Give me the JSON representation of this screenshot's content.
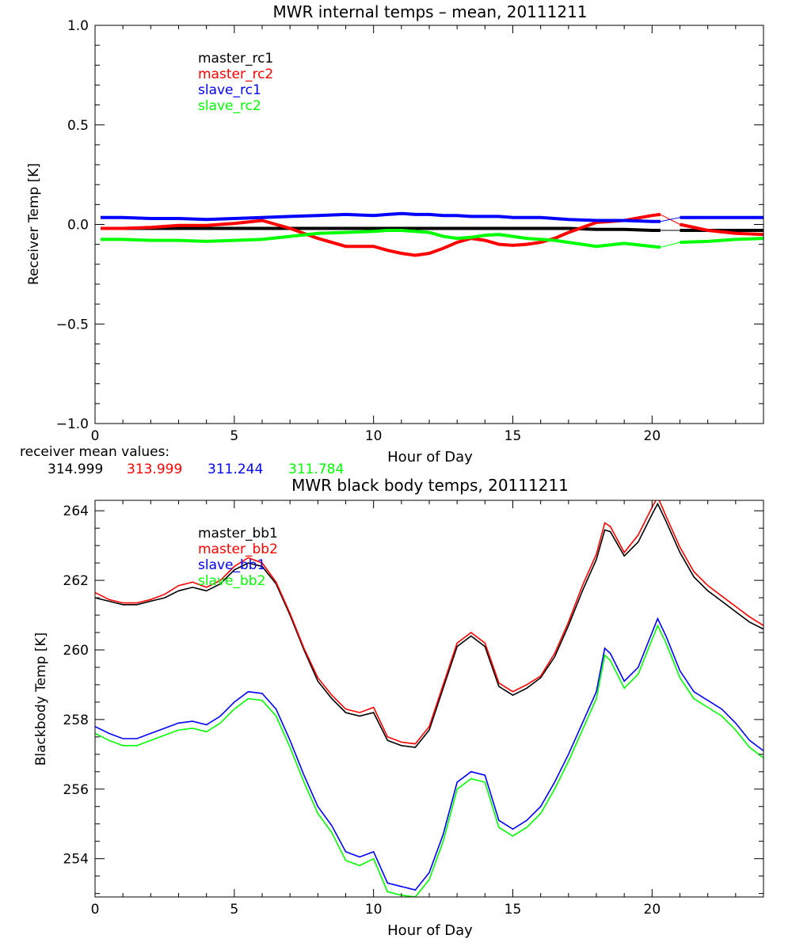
{
  "chart_data": [
    {
      "type": "line",
      "title": "MWR internal temps – mean, 20111211",
      "xlabel": "Hour of Day",
      "ylabel": "Receiver Temp [K]",
      "xlim": [
        0,
        24
      ],
      "ylim": [
        -1.0,
        1.0
      ],
      "x_ticks": [
        0,
        5,
        10,
        15,
        20
      ],
      "x_tick_labels": [
        "0",
        "5",
        "10",
        "15",
        "20"
      ],
      "y_ticks": [
        -1.0,
        -0.5,
        0.0,
        0.5,
        1.0
      ],
      "y_tick_labels": [
        "−1.0",
        "−0.5",
        "0.0",
        "0.5",
        "1.0"
      ],
      "grid": false,
      "legend_position": "top-left",
      "x": [
        0.2,
        1,
        2,
        3,
        4,
        5,
        6,
        7,
        8,
        9,
        10,
        10.5,
        11,
        11.5,
        12,
        12.5,
        13,
        13.5,
        14,
        14.5,
        15,
        15.5,
        16,
        16.5,
        17,
        18,
        19,
        20,
        20.3
      ],
      "x_after_gap": [
        21.0,
        22,
        23,
        24
      ],
      "series": [
        {
          "name": "master_rc1",
          "color": "#000000",
          "values": [
            -0.02,
            -0.02,
            -0.02,
            -0.02,
            -0.02,
            -0.02,
            -0.02,
            -0.02,
            -0.02,
            -0.02,
            -0.02,
            -0.02,
            -0.02,
            -0.02,
            -0.02,
            -0.02,
            -0.02,
            -0.02,
            -0.02,
            -0.02,
            -0.02,
            -0.02,
            -0.02,
            -0.02,
            -0.02,
            -0.025,
            -0.025,
            -0.03,
            -0.03
          ],
          "values_after_gap": [
            -0.03,
            -0.03,
            -0.03,
            -0.03
          ]
        },
        {
          "name": "master_rc2",
          "color": "#ff0000",
          "values": [
            -0.02,
            -0.02,
            -0.015,
            -0.005,
            -0.005,
            0.005,
            0.02,
            -0.02,
            -0.07,
            -0.11,
            -0.11,
            -0.13,
            -0.145,
            -0.155,
            -0.145,
            -0.12,
            -0.09,
            -0.07,
            -0.08,
            -0.1,
            -0.105,
            -0.1,
            -0.09,
            -0.07,
            -0.04,
            0.01,
            0.02,
            0.045,
            0.05
          ],
          "values_after_gap": [
            0.0,
            -0.03,
            -0.045,
            -0.05
          ]
        },
        {
          "name": "slave_rc1",
          "color": "#0000ff",
          "values": [
            0.035,
            0.035,
            0.03,
            0.03,
            0.025,
            0.03,
            0.035,
            0.04,
            0.045,
            0.05,
            0.045,
            0.05,
            0.055,
            0.05,
            0.05,
            0.045,
            0.045,
            0.04,
            0.04,
            0.04,
            0.035,
            0.035,
            0.035,
            0.03,
            0.025,
            0.02,
            0.02,
            0.015,
            0.015
          ],
          "values_after_gap": [
            0.035,
            0.035,
            0.035,
            0.035
          ]
        },
        {
          "name": "slave_rc2",
          "color": "#00ff00",
          "values": [
            -0.075,
            -0.075,
            -0.08,
            -0.08,
            -0.085,
            -0.08,
            -0.075,
            -0.06,
            -0.045,
            -0.04,
            -0.035,
            -0.03,
            -0.03,
            -0.035,
            -0.04,
            -0.06,
            -0.07,
            -0.065,
            -0.055,
            -0.05,
            -0.06,
            -0.07,
            -0.075,
            -0.08,
            -0.09,
            -0.11,
            -0.095,
            -0.11,
            -0.115
          ],
          "values_after_gap": [
            -0.09,
            -0.085,
            -0.075,
            -0.07
          ]
        }
      ]
    },
    {
      "type": "line",
      "title": "MWR black body temps, 20111211",
      "xlabel": "Hour of Day",
      "ylabel": "Blackbody Temp [K]",
      "xlim": [
        0,
        24
      ],
      "ylim": [
        252.9,
        264.3
      ],
      "x_ticks": [
        0,
        5,
        10,
        15,
        20
      ],
      "x_tick_labels": [
        "0",
        "5",
        "10",
        "15",
        "20"
      ],
      "y_ticks": [
        254,
        256,
        258,
        260,
        262,
        264
      ],
      "y_tick_labels": [
        "254",
        "256",
        "258",
        "260",
        "262",
        "264"
      ],
      "grid": false,
      "legend_position": "top-left",
      "x": [
        0,
        0.5,
        1,
        1.5,
        2,
        2.5,
        3,
        3.5,
        4,
        4.5,
        5,
        5.5,
        6,
        6.5,
        7,
        7.5,
        8,
        8.5,
        9,
        9.5,
        10,
        10.5,
        11,
        11.5,
        12,
        12.5,
        13,
        13.5,
        14,
        14.5,
        15,
        15.5,
        16,
        16.5,
        17,
        17.5,
        18,
        18.3,
        18.5,
        19,
        19.5,
        20,
        20.2,
        20.5,
        21,
        21.5,
        22,
        22.5,
        23,
        23.5,
        24
      ],
      "series": [
        {
          "name": "master_bb1",
          "color": "#000000",
          "values": [
            261.5,
            261.4,
            261.3,
            261.3,
            261.4,
            261.5,
            261.7,
            261.8,
            261.7,
            261.9,
            262.3,
            262.5,
            262.4,
            261.9,
            261.0,
            260.0,
            259.1,
            258.6,
            258.2,
            258.1,
            258.2,
            257.4,
            257.25,
            257.2,
            257.7,
            258.9,
            260.1,
            260.4,
            260.1,
            258.95,
            258.7,
            258.9,
            259.2,
            259.8,
            260.7,
            261.7,
            262.6,
            263.45,
            263.4,
            262.7,
            263.1,
            263.9,
            264.2,
            263.7,
            262.8,
            262.1,
            261.7,
            261.4,
            261.1,
            260.8,
            260.6
          ]
        },
        {
          "name": "master_bb2",
          "color": "#ff0000",
          "values": [
            261.65,
            261.45,
            261.35,
            261.35,
            261.45,
            261.6,
            261.85,
            261.95,
            261.8,
            262.0,
            262.4,
            262.65,
            262.5,
            261.95,
            261.05,
            260.05,
            259.2,
            258.7,
            258.3,
            258.2,
            258.35,
            257.5,
            257.35,
            257.3,
            257.8,
            259.0,
            260.2,
            260.5,
            260.2,
            259.05,
            258.8,
            259.0,
            259.25,
            259.9,
            260.8,
            261.85,
            262.75,
            263.65,
            263.55,
            262.8,
            263.3,
            264.1,
            264.4,
            263.85,
            262.95,
            262.25,
            261.85,
            261.55,
            261.25,
            260.95,
            260.7
          ]
        },
        {
          "name": "slave_bb1",
          "color": "#0000ff",
          "values": [
            257.8,
            257.6,
            257.45,
            257.45,
            257.6,
            257.75,
            257.9,
            257.95,
            257.85,
            258.1,
            258.5,
            258.8,
            258.75,
            258.3,
            257.4,
            256.4,
            255.5,
            254.95,
            254.2,
            254.05,
            254.2,
            253.3,
            253.2,
            253.1,
            253.6,
            254.7,
            256.2,
            256.5,
            256.4,
            255.1,
            254.85,
            255.1,
            255.5,
            256.2,
            257.0,
            257.9,
            258.8,
            260.05,
            259.9,
            259.1,
            259.5,
            260.5,
            260.9,
            260.4,
            259.4,
            258.8,
            258.55,
            258.3,
            257.9,
            257.4,
            257.1
          ]
        },
        {
          "name": "slave_bb2",
          "color": "#00ff00",
          "values": [
            257.6,
            257.4,
            257.25,
            257.25,
            257.4,
            257.55,
            257.7,
            257.75,
            257.65,
            257.9,
            258.3,
            258.6,
            258.55,
            258.1,
            257.2,
            256.2,
            255.3,
            254.75,
            253.95,
            253.8,
            254.0,
            253.05,
            252.95,
            252.9,
            253.4,
            254.5,
            256.0,
            256.3,
            256.2,
            254.9,
            254.65,
            254.9,
            255.3,
            256.0,
            256.8,
            257.7,
            258.6,
            259.85,
            259.7,
            258.9,
            259.3,
            260.3,
            260.7,
            260.2,
            259.2,
            258.6,
            258.35,
            258.1,
            257.7,
            257.2,
            256.9
          ]
        }
      ]
    }
  ],
  "mean_values": {
    "label": "receiver mean values:",
    "items": [
      {
        "text": "314.999",
        "color": "#000000"
      },
      {
        "text": "313.999",
        "color": "#ff0000"
      },
      {
        "text": "311.244",
        "color": "#0000ff"
      },
      {
        "text": "311.784",
        "color": "#00ff00"
      }
    ]
  }
}
